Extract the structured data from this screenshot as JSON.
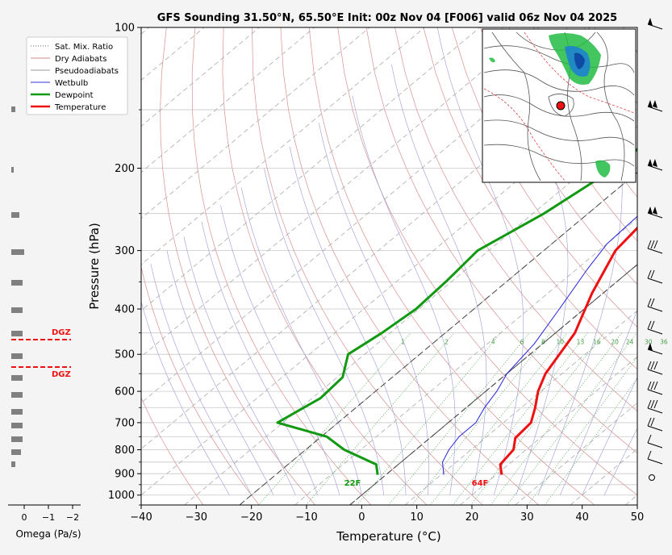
{
  "chart_data": {
    "type": "line",
    "title": "GFS Sounding 31.50°N, 65.50°E Init: 00z Nov 04 [F006] valid 06z Nov 04 2025",
    "xlabel": "Temperature (°C)",
    "ylabel": "Pressure (hPa)",
    "xlim": [
      -40,
      50
    ],
    "ylim": [
      1050,
      100
    ],
    "x_ticks": [
      "−40",
      "−30",
      "−20",
      "−10",
      "0",
      "10",
      "20",
      "30",
      "40",
      "50"
    ],
    "y_ticks": [
      "100",
      "200",
      "300",
      "400",
      "500",
      "600",
      "700",
      "800",
      "900",
      "1000"
    ],
    "legend": {
      "placement": "top-left",
      "entries": [
        "Sat. Mix. Ratio",
        "Dry Adiabats",
        "Pseudoadiabats",
        "Wetbulb",
        "Dewpoint",
        "Temperature"
      ]
    },
    "series": [
      {
        "name": "Temperature",
        "color": "#ee1111",
        "points": [
          [
            21,
            905
          ],
          [
            18.5,
            860
          ],
          [
            17.7,
            800
          ],
          [
            15.5,
            755
          ],
          [
            15,
            700
          ],
          [
            12.5,
            650
          ],
          [
            9.5,
            600
          ],
          [
            7,
            550
          ],
          [
            3.5,
            450
          ],
          [
            -2,
            370
          ],
          [
            -7,
            300
          ],
          [
            -8.5,
            250
          ],
          [
            -9.5,
            200
          ],
          [
            -8.5,
            150
          ],
          [
            -4,
            100
          ]
        ]
      },
      {
        "name": "Dewpoint",
        "color": "#119911",
        "points": [
          [
            -1.5,
            905
          ],
          [
            -4,
            860
          ],
          [
            -13,
            800
          ],
          [
            -19,
            750
          ],
          [
            -31,
            700
          ],
          [
            -28.5,
            620
          ],
          [
            -29,
            560
          ],
          [
            -33,
            500
          ],
          [
            -31.5,
            450
          ],
          [
            -30.5,
            400
          ],
          [
            -31,
            350
          ],
          [
            -32,
            300
          ],
          [
            -28,
            250
          ],
          [
            -25,
            200
          ],
          [
            -25,
            150
          ],
          [
            -20,
            100
          ]
        ]
      },
      {
        "name": "Wetbulb",
        "color": "#2222dd",
        "points": [
          [
            10.5,
            905
          ],
          [
            7.5,
            850
          ],
          [
            6,
            800
          ],
          [
            5,
            750
          ],
          [
            5,
            700
          ],
          [
            3.3,
            650
          ],
          [
            2,
            600
          ],
          [
            0,
            550
          ],
          [
            -1.5,
            475
          ],
          [
            -4.5,
            400
          ],
          [
            -8,
            330
          ],
          [
            -10,
            290
          ],
          [
            -10.5,
            250
          ],
          [
            -11,
            200
          ]
        ]
      }
    ],
    "mixing_ratio_labels": [
      "1",
      "2",
      "4",
      "6",
      "8",
      "10",
      "13",
      "16",
      "20",
      "24",
      "30",
      "36"
    ],
    "annotations": {
      "temp_surface": "64F",
      "dewpoint_surface": "22F"
    },
    "omega": {
      "xlabel": "Omega (Pa/s)",
      "x_ticks": [
        "0",
        "−1",
        "−2"
      ],
      "dgz_label": "DGZ"
    }
  },
  "colors": {
    "temperature": "#ee1111",
    "dewpoint": "#119911",
    "wetbulb": "#2222dd",
    "dgz": "#ee1111",
    "omega_bar": "#808080"
  }
}
